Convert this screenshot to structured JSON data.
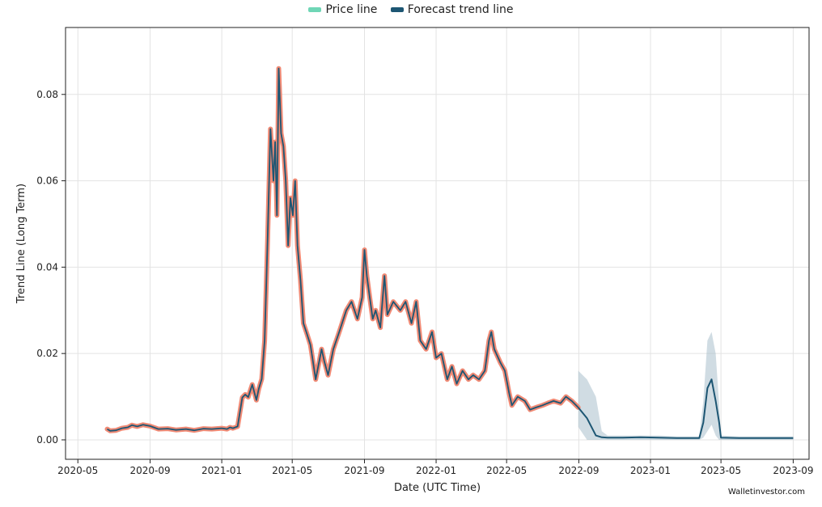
{
  "chart_data": {
    "type": "line",
    "title": "",
    "xlabel": "Date (UTC Time)",
    "ylabel": "Trend Line (Long Term)",
    "ylim": [
      -0.0045,
      0.0955
    ],
    "xlim": [
      "2020-04-10",
      "2023-09-28"
    ],
    "grid": true,
    "legend_placement": "top-center",
    "x_ticks": [
      "2020-05",
      "2020-09",
      "2021-01",
      "2021-05",
      "2021-09",
      "2022-01",
      "2022-05",
      "2022-09",
      "2023-01",
      "2023-05",
      "2023-09"
    ],
    "x_tick_dates": [
      "2020-05-01",
      "2020-09-01",
      "2021-01-01",
      "2021-05-01",
      "2021-09-01",
      "2022-01-01",
      "2022-05-01",
      "2022-09-01",
      "2023-01-01",
      "2023-05-01",
      "2023-09-01"
    ],
    "y_ticks": [
      "0.00",
      "0.02",
      "0.04",
      "0.06",
      "0.08"
    ],
    "y_tick_values": [
      0.0,
      0.02,
      0.04,
      0.06,
      0.08
    ],
    "colors": {
      "price_line": "#f08a75",
      "price_legend_swatch": "#6fd6b6",
      "forecast_line": "#1d5673",
      "forecast_band": "#a9bfcc",
      "grid": "#e3e3e3"
    },
    "series": [
      {
        "name": "Price line",
        "x": [
          "2020-06-20",
          "2020-06-25",
          "2020-07-05",
          "2020-07-15",
          "2020-07-25",
          "2020-08-01",
          "2020-08-10",
          "2020-08-20",
          "2020-09-01",
          "2020-09-15",
          "2020-10-01",
          "2020-10-15",
          "2020-11-01",
          "2020-11-15",
          "2020-12-01",
          "2020-12-15",
          "2021-01-01",
          "2021-01-10",
          "2021-01-15",
          "2021-01-20",
          "2021-01-28",
          "2021-02-05",
          "2021-02-10",
          "2021-02-15",
          "2021-02-22",
          "2021-03-01",
          "2021-03-05",
          "2021-03-10",
          "2021-03-15",
          "2021-03-20",
          "2021-03-25",
          "2021-03-30",
          "2021-04-02",
          "2021-04-05",
          "2021-04-08",
          "2021-04-12",
          "2021-04-16",
          "2021-04-20",
          "2021-04-24",
          "2021-04-28",
          "2021-05-02",
          "2021-05-06",
          "2021-05-10",
          "2021-05-15",
          "2021-05-20",
          "2021-05-25",
          "2021-06-01",
          "2021-06-10",
          "2021-06-20",
          "2021-06-25",
          "2021-07-01",
          "2021-07-10",
          "2021-07-20",
          "2021-08-01",
          "2021-08-10",
          "2021-08-20",
          "2021-08-28",
          "2021-09-01",
          "2021-09-05",
          "2021-09-10",
          "2021-09-15",
          "2021-09-20",
          "2021-09-28",
          "2021-10-05",
          "2021-10-10",
          "2021-10-20",
          "2021-11-01",
          "2021-11-10",
          "2021-11-20",
          "2021-11-28",
          "2021-12-05",
          "2021-12-15",
          "2021-12-25",
          "2022-01-01",
          "2022-01-10",
          "2022-01-20",
          "2022-01-28",
          "2022-02-05",
          "2022-02-15",
          "2022-02-25",
          "2022-03-05",
          "2022-03-15",
          "2022-03-25",
          "2022-04-01",
          "2022-04-05",
          "2022-04-10",
          "2022-04-20",
          "2022-04-28",
          "2022-05-05",
          "2022-05-10",
          "2022-05-20",
          "2022-06-01",
          "2022-06-10",
          "2022-06-20",
          "2022-07-01",
          "2022-07-10",
          "2022-07-20",
          "2022-08-01",
          "2022-08-10",
          "2022-08-20",
          "2022-08-31"
        ],
        "values": [
          0.0025,
          0.0021,
          0.0022,
          0.0027,
          0.0029,
          0.0034,
          0.0031,
          0.0035,
          0.0032,
          0.0025,
          0.0026,
          0.0023,
          0.0025,
          0.0022,
          0.0026,
          0.0025,
          0.0027,
          0.0025,
          0.0029,
          0.0027,
          0.0031,
          0.0098,
          0.0105,
          0.0099,
          0.0128,
          0.0092,
          0.0118,
          0.0141,
          0.023,
          0.046,
          0.072,
          0.06,
          0.069,
          0.052,
          0.086,
          0.071,
          0.068,
          0.06,
          0.045,
          0.056,
          0.052,
          0.06,
          0.045,
          0.037,
          0.027,
          0.025,
          0.022,
          0.014,
          0.021,
          0.018,
          0.015,
          0.021,
          0.025,
          0.03,
          0.032,
          0.028,
          0.033,
          0.044,
          0.038,
          0.033,
          0.028,
          0.03,
          0.026,
          0.038,
          0.029,
          0.032,
          0.03,
          0.032,
          0.027,
          0.032,
          0.023,
          0.021,
          0.025,
          0.019,
          0.02,
          0.014,
          0.017,
          0.013,
          0.016,
          0.014,
          0.015,
          0.014,
          0.016,
          0.023,
          0.025,
          0.021,
          0.018,
          0.016,
          0.011,
          0.008,
          0.01,
          0.009,
          0.007,
          0.0075,
          0.008,
          0.0085,
          0.009,
          0.0085,
          0.01,
          0.009,
          0.0075
        ]
      },
      {
        "name": "Forecast trend line",
        "x": [
          "2022-08-31",
          "2022-09-15",
          "2022-09-30",
          "2022-10-10",
          "2022-10-20",
          "2022-11-15",
          "2022-12-15",
          "2023-01-15",
          "2023-02-15",
          "2023-03-15",
          "2023-03-25",
          "2023-04-01",
          "2023-04-08",
          "2023-04-15",
          "2023-04-22",
          "2023-04-28",
          "2023-05-01",
          "2023-06-01",
          "2023-07-01",
          "2023-08-01",
          "2023-09-01"
        ],
        "values": [
          0.0075,
          0.005,
          0.001,
          0.0006,
          0.0005,
          0.0005,
          0.0006,
          0.0005,
          0.0004,
          0.0004,
          0.0004,
          0.004,
          0.012,
          0.014,
          0.009,
          0.004,
          0.0005,
          0.0004,
          0.0004,
          0.0004,
          0.0004
        ],
        "lower": [
          0.003,
          0.0,
          0.0,
          0.0,
          0.0,
          0.0,
          0.0,
          0.0,
          0.0,
          0.0,
          0.0,
          0.0005,
          0.002,
          0.0035,
          0.001,
          0.0,
          0.0,
          0.0,
          0.0,
          0.0,
          0.0
        ],
        "upper": [
          0.016,
          0.014,
          0.01,
          0.002,
          0.001,
          0.001,
          0.001,
          0.001,
          0.0008,
          0.0008,
          0.0008,
          0.009,
          0.023,
          0.025,
          0.02,
          0.008,
          0.001,
          0.0008,
          0.0008,
          0.0008,
          0.0008
        ]
      }
    ]
  },
  "watermark": "Walletinvestor.com"
}
